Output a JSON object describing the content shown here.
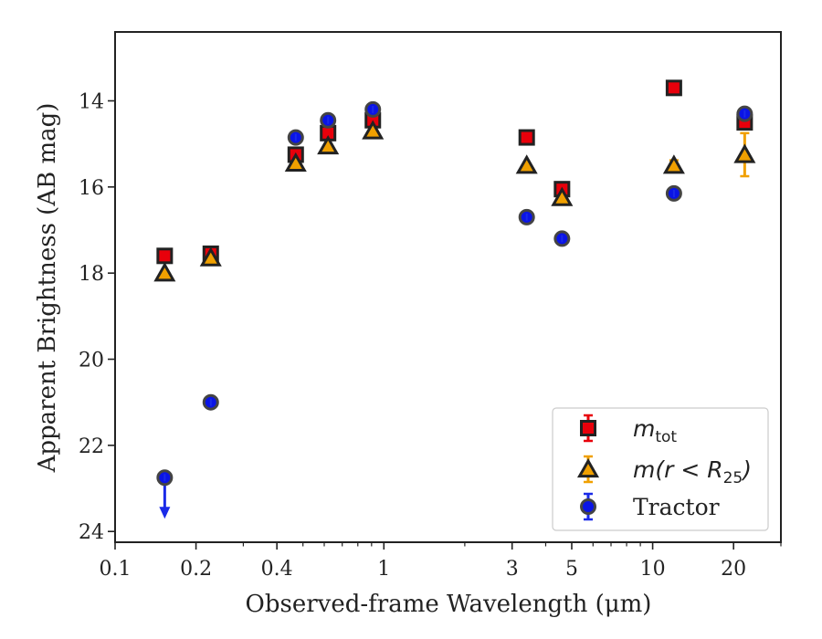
{
  "chart_data": {
    "type": "scatter",
    "xlabel": "Observed-frame Wavelength (μm)",
    "ylabel": "Apparent Brightness (AB mag)",
    "x_scale": "log",
    "y_inverted": true,
    "xlim": [
      0.1,
      30
    ],
    "ylim": [
      24.25,
      12.4
    ],
    "x_ticks": [
      0.1,
      0.2,
      0.4,
      1,
      3,
      5,
      10,
      20
    ],
    "x_tick_labels": [
      "0.1",
      "0.2",
      "0.4",
      "1",
      "3",
      "5",
      "10",
      "20"
    ],
    "y_ticks": [
      14,
      16,
      18,
      20,
      22,
      24
    ],
    "y_tick_labels": [
      "14",
      "16",
      "18",
      "20",
      "22",
      "24"
    ],
    "grid": false,
    "legend_position": "lower-right",
    "series": [
      {
        "name": "m_tot",
        "marker": "square",
        "face_color": "#e8000b",
        "edge_color": "#222222",
        "err_color": "#e8000b",
        "points": [
          {
            "x": 0.153,
            "y": 17.6
          },
          {
            "x": 0.227,
            "y": 17.55
          },
          {
            "x": 0.47,
            "y": 15.25
          },
          {
            "x": 0.62,
            "y": 14.75
          },
          {
            "x": 0.91,
            "y": 14.45
          },
          {
            "x": 3.4,
            "y": 14.85
          },
          {
            "x": 4.6,
            "y": 16.05
          },
          {
            "x": 12.0,
            "y": 13.7
          },
          {
            "x": 22.0,
            "y": 14.5,
            "err": 0.15
          }
        ]
      },
      {
        "name": "m(r < R25)",
        "marker": "triangle",
        "face_color": "#f0a000",
        "edge_color": "#222222",
        "err_color": "#f0a000",
        "points": [
          {
            "x": 0.153,
            "y": 18.0
          },
          {
            "x": 0.227,
            "y": 17.65
          },
          {
            "x": 0.47,
            "y": 15.45
          },
          {
            "x": 0.62,
            "y": 15.05
          },
          {
            "x": 0.91,
            "y": 14.7
          },
          {
            "x": 3.4,
            "y": 15.5
          },
          {
            "x": 4.6,
            "y": 16.25
          },
          {
            "x": 12.0,
            "y": 15.5,
            "err": 0.12
          },
          {
            "x": 22.0,
            "y": 15.25,
            "err": 0.5
          }
        ]
      },
      {
        "name": "Tractor",
        "marker": "circle",
        "face_color": "#0a14e6",
        "edge_color": "#444444",
        "err_color": "#1a2ae8",
        "points": [
          {
            "x": 0.153,
            "y": 22.75,
            "upper_limit": true
          },
          {
            "x": 0.227,
            "y": 21.0
          },
          {
            "x": 0.47,
            "y": 14.85
          },
          {
            "x": 0.62,
            "y": 14.45
          },
          {
            "x": 0.91,
            "y": 14.2
          },
          {
            "x": 3.4,
            "y": 16.7
          },
          {
            "x": 4.6,
            "y": 17.2
          },
          {
            "x": 12.0,
            "y": 16.15
          },
          {
            "x": 22.0,
            "y": 14.3
          }
        ]
      }
    ]
  }
}
